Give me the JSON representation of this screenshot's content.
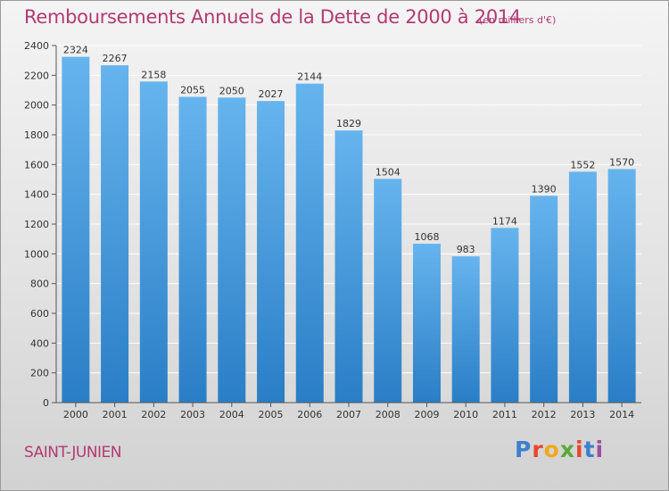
{
  "header": {
    "title": "Remboursements Annuels de la Dette de 2000 à 2014",
    "subtitle": "(en milliers d'€)"
  },
  "footer": {
    "commune": "SAINT-JUNIEN",
    "logo_letters": [
      "P",
      "r",
      "o",
      "x",
      "i",
      "t",
      "i"
    ]
  },
  "colors": {
    "title": "#b23a73",
    "bar_light": "#66b4ee",
    "bar_dark": "#2a7ec6",
    "grid": "#ffffff",
    "logo": [
      "#3c7fd0",
      "#e8462e",
      "#f2a81d",
      "#5aa93d",
      "#e8462e",
      "#3c7fd0",
      "#9c4ea0"
    ]
  },
  "chart_data": {
    "type": "bar",
    "title": "Remboursements Annuels de la Dette de 2000 à 2014",
    "subtitle": "(en milliers d'€)",
    "xlabel": "",
    "ylabel": "",
    "categories": [
      "2000",
      "2001",
      "2002",
      "2003",
      "2004",
      "2005",
      "2006",
      "2007",
      "2008",
      "2009",
      "2010",
      "2011",
      "2012",
      "2013",
      "2014"
    ],
    "values": [
      2324,
      2267,
      2158,
      2055,
      2050,
      2027,
      2144,
      1829,
      1504,
      1068,
      983,
      1174,
      1390,
      1552,
      1570
    ],
    "ylim": [
      0,
      2400
    ],
    "yticks": [
      0,
      200,
      400,
      600,
      800,
      1000,
      1200,
      1400,
      1600,
      1800,
      2000,
      2200,
      2400
    ],
    "grid": true,
    "legend": "none"
  }
}
